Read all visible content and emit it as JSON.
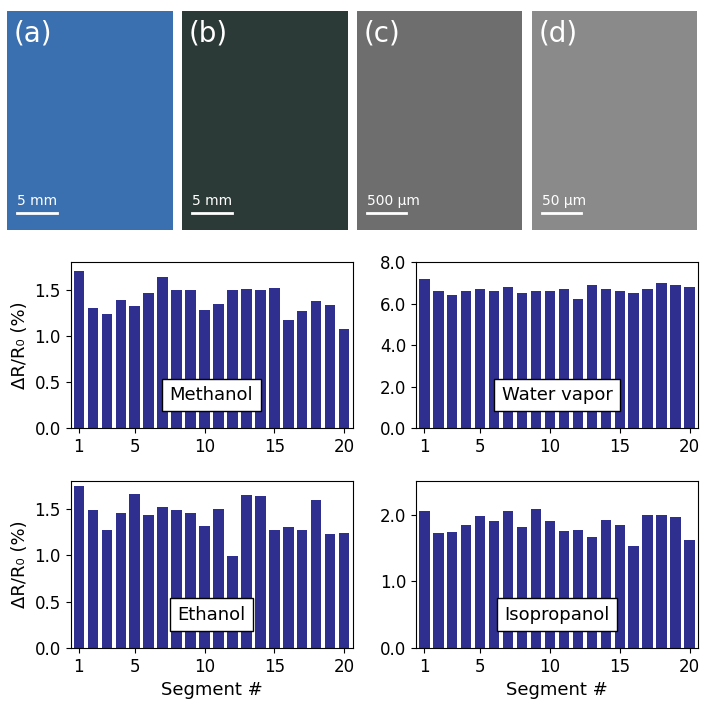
{
  "panels": [
    {
      "label": "(a)",
      "scale_bar": "5 mm"
    },
    {
      "label": "(b)",
      "scale_bar": "5 mm"
    },
    {
      "label": "(c)",
      "scale_bar": "500 µm"
    },
    {
      "label": "(d)",
      "scale_bar": "50 µm"
    }
  ],
  "chart_data": [
    {
      "type": "bar",
      "annotation": "Methanol",
      "ylabel": "ΔR/R₀ (%)",
      "color": "#2f2f8f",
      "x": [
        1,
        2,
        3,
        4,
        5,
        6,
        7,
        8,
        9,
        10,
        11,
        12,
        13,
        14,
        15,
        16,
        17,
        18,
        19,
        20
      ],
      "values": [
        1.7,
        1.3,
        1.24,
        1.39,
        1.32,
        1.46,
        1.64,
        1.5,
        1.5,
        1.28,
        1.35,
        1.5,
        1.51,
        1.5,
        1.52,
        1.17,
        1.27,
        1.38,
        1.33,
        1.07
      ],
      "xlim": [
        0.4,
        20.6
      ],
      "xticks": [
        1,
        5,
        10,
        15,
        20
      ],
      "ylim": [
        0,
        1.8
      ],
      "yticks": [
        {
          "value": 0,
          "label": "0.0"
        },
        {
          "value": 0.5,
          "label": "0.5"
        },
        {
          "value": 1.0,
          "label": "1.0"
        },
        {
          "value": 1.5,
          "label": "1.5"
        }
      ],
      "grid": false
    },
    {
      "type": "bar",
      "annotation": "Water vapor",
      "color": "#2f2f8f",
      "x": [
        1,
        2,
        3,
        4,
        5,
        6,
        7,
        8,
        9,
        10,
        11,
        12,
        13,
        14,
        15,
        16,
        17,
        18,
        19,
        20
      ],
      "values": [
        7.2,
        6.6,
        6.4,
        6.6,
        6.7,
        6.6,
        6.8,
        6.5,
        6.6,
        6.6,
        6.7,
        6.2,
        6.9,
        6.7,
        6.6,
        6.5,
        6.7,
        7.0,
        6.9,
        6.8
      ],
      "xlim": [
        0.4,
        20.6
      ],
      "xticks": [
        1,
        5,
        10,
        15,
        20
      ],
      "ylim": [
        0,
        8
      ],
      "yticks": [
        {
          "value": 0,
          "label": "0.0"
        },
        {
          "value": 2,
          "label": "2.0"
        },
        {
          "value": 4,
          "label": "4.0"
        },
        {
          "value": 6,
          "label": "6.0"
        },
        {
          "value": 8,
          "label": "8.0"
        }
      ],
      "grid": false
    },
    {
      "type": "bar",
      "annotation": "Ethanol",
      "ylabel": "ΔR/R₀ (%)",
      "xlabel": "Segment #",
      "color": "#2f2f8f",
      "x": [
        1,
        2,
        3,
        4,
        5,
        6,
        7,
        8,
        9,
        10,
        11,
        12,
        13,
        14,
        15,
        16,
        17,
        18,
        19,
        20
      ],
      "values": [
        1.75,
        1.49,
        1.28,
        1.46,
        1.66,
        1.44,
        1.52,
        1.49,
        1.46,
        1.32,
        1.5,
        0.99,
        1.65,
        1.64,
        1.27,
        1.31,
        1.28,
        1.6,
        1.23,
        1.24
      ],
      "xlim": [
        0.4,
        20.6
      ],
      "xticks": [
        1,
        5,
        10,
        15,
        20
      ],
      "ylim": [
        0,
        1.8
      ],
      "yticks": [
        {
          "value": 0,
          "label": "0.0"
        },
        {
          "value": 0.5,
          "label": "0.5"
        },
        {
          "value": 1.0,
          "label": "1.0"
        },
        {
          "value": 1.5,
          "label": "1.5"
        }
      ],
      "grid": false
    },
    {
      "type": "bar",
      "annotation": "Isopropanol",
      "xlabel": "Segment #",
      "color": "#2f2f8f",
      "x": [
        1,
        2,
        3,
        4,
        5,
        6,
        7,
        8,
        9,
        10,
        11,
        12,
        13,
        14,
        15,
        16,
        17,
        18,
        19,
        20
      ],
      "values": [
        2.05,
        1.73,
        1.74,
        1.85,
        1.98,
        1.91,
        2.05,
        1.82,
        2.09,
        1.91,
        1.75,
        1.77,
        1.66,
        1.92,
        1.85,
        1.53,
        1.99,
        1.99,
        1.96,
        1.62
      ],
      "xlim": [
        0.4,
        20.6
      ],
      "xticks": [
        1,
        5,
        10,
        15,
        20
      ],
      "ylim": [
        0,
        2.5
      ],
      "yticks": [
        {
          "value": 0,
          "label": "0.0"
        },
        {
          "value": 1.0,
          "label": "1.0"
        },
        {
          "value": 2.0,
          "label": "2.0"
        }
      ],
      "grid": false
    }
  ]
}
